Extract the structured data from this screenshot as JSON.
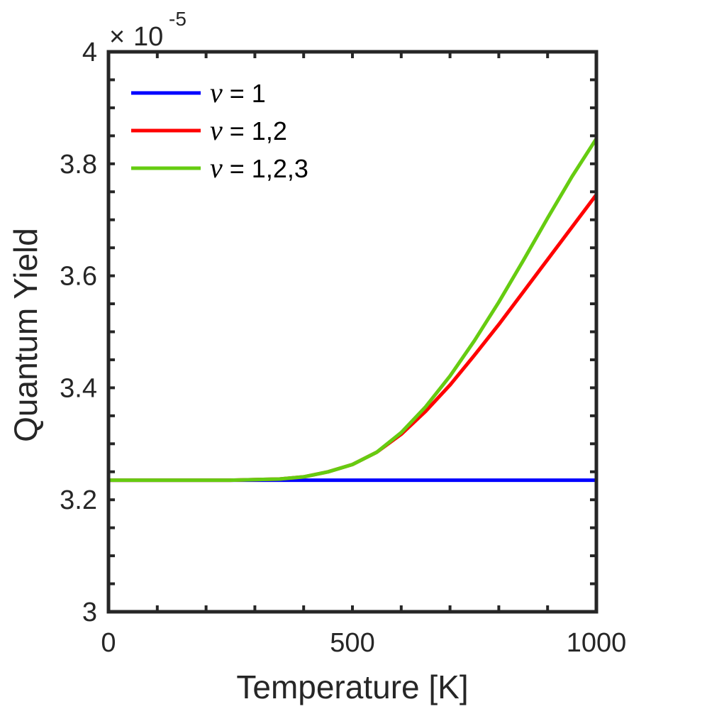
{
  "chart_data": {
    "type": "line",
    "title": "",
    "xlabel": "Temperature [K]",
    "ylabel": "Quantum Yield",
    "xlim": [
      0,
      1000
    ],
    "ylim": [
      3.0,
      4.0
    ],
    "y_multiplier": {
      "base": "10",
      "exponent": "-5",
      "times": "×"
    },
    "x_ticks": [
      0,
      500,
      1000
    ],
    "x_tick_labels": [
      "0",
      "500",
      "1000"
    ],
    "y_ticks": [
      3.0,
      3.2,
      3.4,
      3.6,
      3.8,
      4.0
    ],
    "y_tick_labels": [
      "3",
      "3.2",
      "3.4",
      "3.6",
      "3.8",
      "4"
    ],
    "legend_position": "top-left",
    "grid": false,
    "series": [
      {
        "name": "ν = 1",
        "nu": "ν",
        "label_rest": " = 1",
        "color": "#0000ff",
        "x": [
          0,
          100,
          200,
          300,
          400,
          500,
          600,
          700,
          800,
          900,
          1000
        ],
        "y": [
          3.235,
          3.235,
          3.235,
          3.235,
          3.235,
          3.235,
          3.235,
          3.235,
          3.235,
          3.235,
          3.235
        ]
      },
      {
        "name": "ν = 1,2",
        "nu": "ν",
        "label_rest": " = 1,2",
        "color": "#ff0000",
        "x": [
          0,
          100,
          200,
          250,
          300,
          350,
          400,
          450,
          500,
          550,
          600,
          650,
          700,
          750,
          800,
          850,
          900,
          950,
          1000
        ],
        "y": [
          3.235,
          3.235,
          3.235,
          3.235,
          3.236,
          3.237,
          3.241,
          3.25,
          3.263,
          3.285,
          3.317,
          3.358,
          3.405,
          3.458,
          3.513,
          3.571,
          3.629,
          3.687,
          3.745
        ]
      },
      {
        "name": "ν = 1,2,3",
        "nu": "ν",
        "label_rest": " = 1,2,3",
        "color": "#66cc11",
        "x": [
          0,
          100,
          200,
          250,
          300,
          350,
          400,
          450,
          500,
          550,
          600,
          650,
          700,
          750,
          800,
          850,
          900,
          950,
          1000
        ],
        "y": [
          3.235,
          3.235,
          3.235,
          3.235,
          3.236,
          3.237,
          3.241,
          3.25,
          3.263,
          3.285,
          3.32,
          3.366,
          3.421,
          3.484,
          3.553,
          3.627,
          3.703,
          3.777,
          3.845
        ]
      }
    ]
  }
}
